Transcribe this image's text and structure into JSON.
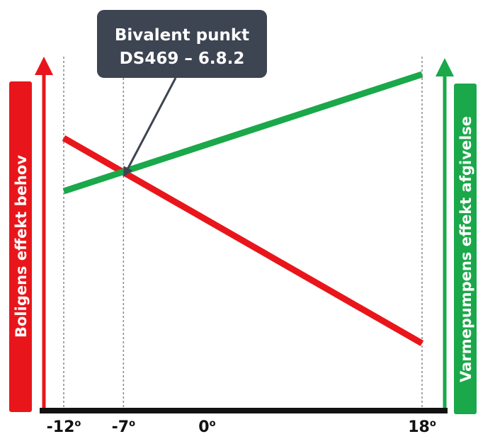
{
  "chart_data": {
    "type": "line",
    "xlim": [
      -12,
      18
    ],
    "ylim": [
      0,
      100
    ],
    "x_ticks": [
      {
        "value": -12,
        "label": "-12",
        "sup": "o"
      },
      {
        "value": -7,
        "label": "-7",
        "sup": "o"
      },
      {
        "value": 0,
        "label": "0",
        "sup": "o"
      },
      {
        "value": 18,
        "label": "18",
        "sup": "o"
      }
    ],
    "guide_lines_x": [
      -12,
      -7,
      18
    ],
    "left_axis_label": "Boligens effekt behov",
    "right_axis_label": "Varmepumpens effekt afgivelse",
    "series": [
      {
        "color": "#e8161b",
        "x": [
          -12,
          18
        ],
        "y": [
          77,
          19
        ]
      },
      {
        "color": "#1aa84a",
        "x": [
          -12,
          18
        ],
        "y": [
          62,
          95
        ]
      }
    ],
    "annotation": {
      "line1": "Bivalent punkt",
      "line2": "DS469 – 6.8.2",
      "target_x": -7,
      "target_y": 66
    },
    "colors": {
      "red": "#e8161b",
      "green": "#1aa84a",
      "axis": "#111111",
      "callout_bg": "#3d4452",
      "guide": "#888888"
    }
  }
}
